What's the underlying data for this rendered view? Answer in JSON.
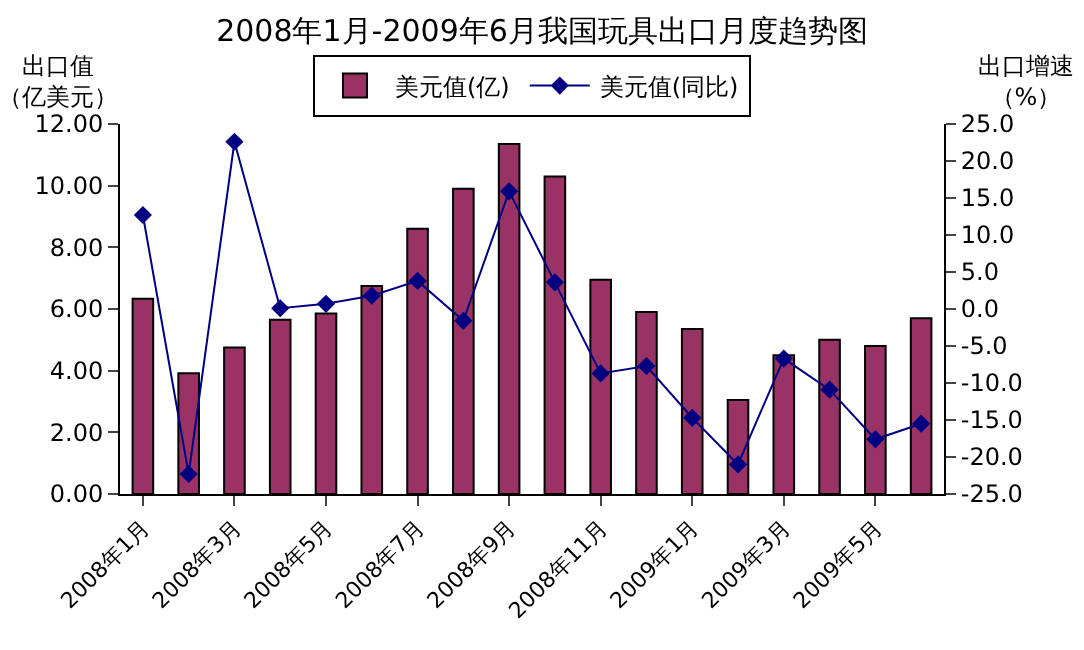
{
  "chart_data": {
    "type": "bar",
    "title": "2008年1月-2009年6月我国玩具出口月度趋势图",
    "ylabel": "出口值（亿美元）",
    "y2label": "出口增速（%）",
    "categories": [
      "2008年1月",
      null,
      "2008年3月",
      null,
      "2008年5月",
      null,
      "2008年7月",
      null,
      "2008年9月",
      null,
      "2008年11月",
      null,
      "2009年1月",
      null,
      "2009年3月",
      null,
      "2009年5月",
      null
    ],
    "series": [
      {
        "name": "美元值(亿)",
        "color": "#993366",
        "values": [
          6.33,
          3.92,
          4.75,
          5.65,
          5.85,
          6.75,
          8.6,
          9.9,
          11.35,
          10.3,
          6.95,
          5.9,
          5.35,
          3.05,
          4.5,
          5.0,
          4.8,
          5.7
        ]
      },
      {
        "name": "美元值(同比)",
        "type": "line",
        "axis": "y2",
        "color": "#000080",
        "marker": "diamond",
        "values": [
          12.7,
          -22.3,
          22.6,
          0.1,
          0.7,
          1.8,
          3.8,
          -1.6,
          15.9,
          3.6,
          -8.7,
          -7.7,
          -14.7,
          -21.0,
          -6.7,
          -10.9,
          -17.6,
          -15.5
        ]
      }
    ],
    "ylim": [
      0,
      12
    ],
    "yticks": [
      {
        "value": 0,
        "label": "0.00"
      },
      {
        "value": 2,
        "label": "2.00"
      },
      {
        "value": 4,
        "label": "4.00"
      },
      {
        "value": 6,
        "label": "6.00"
      },
      {
        "value": 8,
        "label": "8.00"
      },
      {
        "value": 10,
        "label": "10.00"
      },
      {
        "value": 12,
        "label": "12.00"
      }
    ],
    "y2lim": [
      -25,
      25
    ],
    "y2ticks": [
      {
        "value": -25,
        "label": "-25.0"
      },
      {
        "value": -20,
        "label": "-20.0"
      },
      {
        "value": -15,
        "label": "-15.0"
      },
      {
        "value": -10,
        "label": "-10.0"
      },
      {
        "value": -5,
        "label": "-5.0"
      },
      {
        "value": 0,
        "label": "0.0"
      },
      {
        "value": 5,
        "label": "5.0"
      },
      {
        "value": 10,
        "label": "10.0"
      },
      {
        "value": 15,
        "label": "15.0"
      },
      {
        "value": 20,
        "label": "20.0"
      },
      {
        "value": 25,
        "label": "25.0"
      }
    ],
    "legend": "top"
  }
}
